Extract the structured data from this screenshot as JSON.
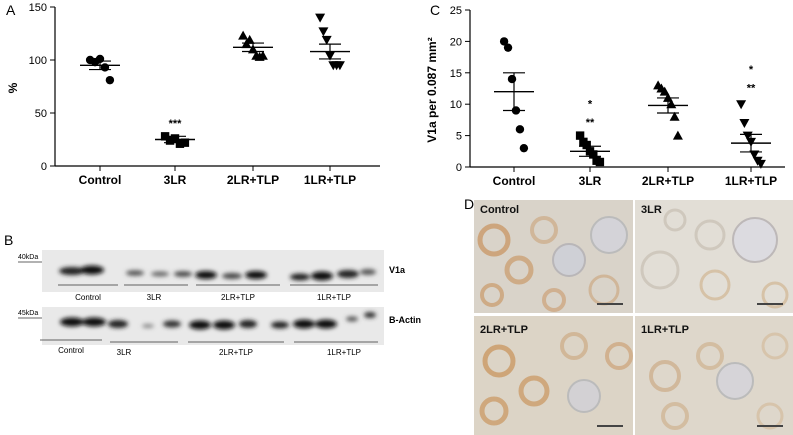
{
  "panels": {
    "a": "A",
    "b": "B",
    "c": "C",
    "d": "D"
  },
  "chart_data": [
    {
      "type": "scatter",
      "panel": "A",
      "ylabel": "%",
      "xlabel": "",
      "ylim": [
        0,
        150
      ],
      "yticks": [
        0,
        50,
        100,
        150
      ],
      "categories": [
        "Control",
        "3LR",
        "2LR+TLP",
        "1LR+TLP"
      ],
      "markers": [
        "circle",
        "square",
        "triangle-up",
        "triangle-down"
      ],
      "points": [
        [
          100,
          98,
          101,
          93,
          81
        ],
        [
          28,
          24,
          26,
          21,
          22
        ],
        [
          123,
          115,
          119,
          110,
          104,
          103,
          104
        ],
        [
          140,
          127,
          119,
          104,
          95,
          95,
          95
        ]
      ],
      "means": [
        95,
        25,
        112,
        108
      ],
      "sem": [
        4,
        3,
        4,
        7
      ],
      "annotations": [
        {
          "category": "3LR",
          "text": "***",
          "y": 37
        }
      ]
    },
    {
      "type": "scatter",
      "panel": "C",
      "ylabel": "V1a per 0.087 mm²",
      "xlabel": "",
      "ylim": [
        0,
        25
      ],
      "yticks": [
        0,
        5,
        10,
        15,
        20,
        25
      ],
      "categories": [
        "Control",
        "3LR",
        "2LR+TLP",
        "1LR+TLP"
      ],
      "markers": [
        "circle",
        "square",
        "triangle-up",
        "triangle-down"
      ],
      "points": [
        [
          20,
          19,
          14,
          9,
          6,
          3
        ],
        [
          5,
          4,
          3.5,
          2.5,
          2,
          1,
          0.8
        ],
        [
          13,
          12.5,
          12,
          11,
          10,
          8,
          5
        ],
        [
          10,
          7,
          5,
          4,
          2,
          1,
          0.5
        ]
      ],
      "means": [
        12,
        2.5,
        9.8,
        3.8
      ],
      "sem": [
        3,
        0.8,
        1.2,
        1.4
      ],
      "annotations": [
        {
          "category": "3LR",
          "text": "*",
          "y": 9.5
        },
        {
          "category": "3LR",
          "text": "**",
          "y": 6.5
        },
        {
          "category": "1LR+TLP",
          "text": "*",
          "y": 15
        },
        {
          "category": "1LR+TLP",
          "text": "**",
          "y": 12
        }
      ]
    }
  ],
  "western": {
    "blots": [
      {
        "marker": "40kDa",
        "target": "V1a",
        "groups": [
          "Control",
          "3LR",
          "2LR+TLP",
          "1LR+TLP"
        ]
      },
      {
        "marker": "45kDa",
        "target": "B-Actin",
        "groups": [
          "Control",
          "3LR",
          "2LR+TLP",
          "1LR+TLP"
        ]
      }
    ]
  },
  "ihc": {
    "tiles": [
      {
        "label": "Control"
      },
      {
        "label": "3LR"
      },
      {
        "label": "2LR+TLP"
      },
      {
        "label": "1LR+TLP"
      }
    ]
  }
}
